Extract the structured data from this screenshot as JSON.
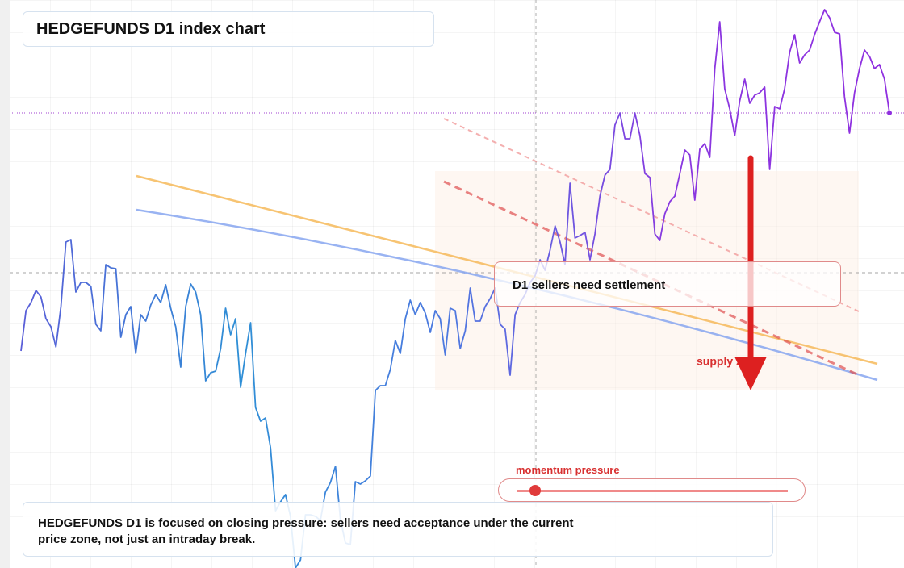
{
  "chart_data": {
    "type": "line",
    "title": "HEDGEFUNDS D1 index chart",
    "note": "HEDGEFUNDS D1 is focused on closing pressure: sellers need acceptance under the current price zone, not just an intraday break.",
    "annotations": [
      "D1 sellers need settlement",
      "supply zone",
      "momentum pressure"
    ],
    "colors": [
      "#5a5ed8",
      "#2f8fd6",
      "#4f78e0",
      "#8a38e0",
      "#9030e0"
    ],
    "ylim": [
      0,
      704
    ],
    "values": [
      269,
      319,
      329,
      344,
      336,
      309,
      299,
      274,
      324,
      404,
      407,
      342,
      354,
      354,
      349,
      302,
      294,
      376,
      372,
      371,
      286,
      314,
      324,
      266,
      314,
      306,
      326,
      339,
      329,
      351,
      322,
      299,
      249,
      324,
      352,
      342,
      314,
      232,
      242,
      244,
      272,
      322,
      289,
      309,
      224,
      266,
      304,
      199,
      182,
      186,
      149,
      71,
      82,
      91,
      64,
      0,
      10,
      66,
      66,
      64,
      59,
      94,
      106,
      126,
      60,
      31,
      29,
      107,
      104,
      108,
      114,
      220,
      226,
      226,
      246,
      282,
      266,
      309,
      332,
      314,
      329,
      316,
      292,
      319,
      309,
      264,
      322,
      319,
      272,
      294,
      347,
      306,
      306,
      324,
      334,
      347,
      302,
      296,
      239,
      314,
      329,
      339,
      354,
      362,
      382,
      369,
      394,
      424,
      404,
      376,
      477,
      409,
      412,
      416,
      382,
      414,
      461,
      487,
      494,
      549,
      564,
      532,
      532,
      564,
      536,
      489,
      484,
      414,
      406,
      439,
      454,
      461,
      489,
      518,
      512,
      456,
      519,
      526,
      509,
      619,
      677,
      594,
      569,
      536,
      579,
      606,
      576,
      586,
      589,
      596,
      494,
      572,
      569,
      594,
      639,
      661,
      626,
      636,
      642,
      661,
      677,
      692,
      682,
      664,
      662,
      584,
      539,
      589,
      619,
      642,
      634,
      619,
      624,
      606,
      564
    ]
  }
}
